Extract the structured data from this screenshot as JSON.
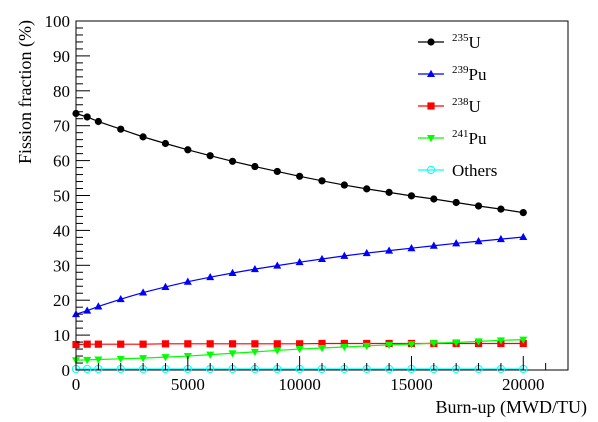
{
  "chart_data": {
    "type": "line",
    "xlabel": "Burn-up (MWD/TU)",
    "ylabel": "Fission fraction (%)",
    "xlim": [
      0,
      22000
    ],
    "ylim": [
      0,
      100
    ],
    "x_ticks": [
      0,
      5000,
      10000,
      15000,
      20000
    ],
    "y_ticks": [
      0,
      10,
      20,
      30,
      40,
      50,
      60,
      70,
      80,
      90,
      100
    ],
    "x_tick_labels": [
      "0",
      "5000",
      "10000",
      "15000",
      "20000"
    ],
    "y_tick_labels": [
      "0",
      "10",
      "20",
      "30",
      "40",
      "50",
      "60",
      "70",
      "80",
      "90",
      "100"
    ],
    "grid": false,
    "legend_position": "top-right",
    "x": [
      0,
      500,
      1000,
      2000,
      3000,
      4000,
      5000,
      6000,
      7000,
      8000,
      9000,
      10000,
      11000,
      12000,
      13000,
      14000,
      15000,
      16000,
      17000,
      18000,
      19000,
      20000
    ],
    "series": [
      {
        "name": "U",
        "name_sup": "235",
        "color": "#000000",
        "marker": "circle",
        "values": [
          73.5,
          72.5,
          71.2,
          69.0,
          66.8,
          64.9,
          63.1,
          61.4,
          59.8,
          58.3,
          56.9,
          55.5,
          54.2,
          53.0,
          51.9,
          50.9,
          49.9,
          49.0,
          48.0,
          47.0,
          46.1,
          45.1
        ]
      },
      {
        "name": "Pu",
        "name_sup": "239",
        "color": "#0000ff",
        "marker": "triangle-up",
        "values": [
          16.0,
          17.0,
          18.2,
          20.3,
          22.2,
          23.8,
          25.3,
          26.6,
          27.8,
          28.9,
          29.9,
          30.9,
          31.8,
          32.7,
          33.5,
          34.2,
          34.9,
          35.6,
          36.3,
          36.9,
          37.5,
          38.1
        ]
      },
      {
        "name": "U",
        "name_sup": "238",
        "color": "#ff0000",
        "marker": "square",
        "values": [
          7.3,
          7.4,
          7.4,
          7.4,
          7.4,
          7.5,
          7.5,
          7.5,
          7.5,
          7.5,
          7.5,
          7.5,
          7.6,
          7.6,
          7.6,
          7.6,
          7.6,
          7.6,
          7.6,
          7.6,
          7.6,
          7.6
        ]
      },
      {
        "name": "Pu",
        "name_sup": "241",
        "color": "#00ff00",
        "marker": "triangle-down",
        "values": [
          2.8,
          2.9,
          3.0,
          3.2,
          3.4,
          3.7,
          4.0,
          4.4,
          4.8,
          5.2,
          5.6,
          6.0,
          6.3,
          6.6,
          6.9,
          7.2,
          7.4,
          7.7,
          7.9,
          8.2,
          8.5,
          8.7
        ]
      },
      {
        "name": "Others",
        "name_sup": "",
        "color": "#00ffff",
        "marker": "circle-open",
        "values": [
          0.3,
          0.3,
          0.3,
          0.3,
          0.3,
          0.3,
          0.3,
          0.3,
          0.3,
          0.3,
          0.3,
          0.3,
          0.3,
          0.3,
          0.3,
          0.3,
          0.3,
          0.3,
          0.3,
          0.3,
          0.3,
          0.3
        ]
      }
    ]
  }
}
